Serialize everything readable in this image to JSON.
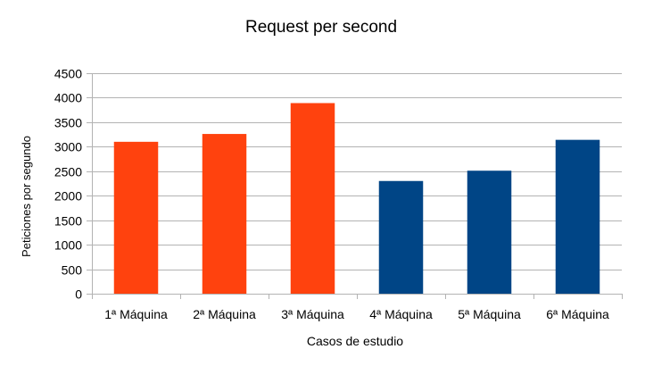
{
  "chart_data": {
    "type": "bar",
    "title": "Request per second",
    "xlabel": "Casos de estudio",
    "ylabel": "Peticiones por segundo",
    "categories": [
      "1ª Máquina",
      "2ª Máquina",
      "3ª Máquina",
      "4ª Máquina",
      "5ª Máquina",
      "6ª Máquina"
    ],
    "values": [
      3100,
      3260,
      3890,
      2300,
      2510,
      3140
    ],
    "bar_colors": [
      "#ff420e",
      "#ff420e",
      "#ff420e",
      "#004586",
      "#004586",
      "#004586"
    ],
    "ylim": [
      0,
      4500
    ],
    "yticks": [
      0,
      500,
      1000,
      1500,
      2000,
      2500,
      3000,
      3500,
      4000,
      4500
    ],
    "grid": true,
    "legend": "none"
  }
}
